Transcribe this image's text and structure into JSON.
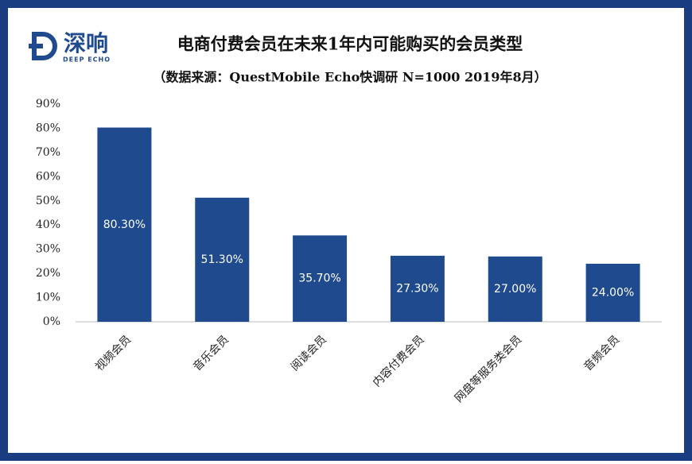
{
  "logo": {
    "name": "深响",
    "subtitle": "DEEP ECHO"
  },
  "chart_data": {
    "type": "bar",
    "title": "电商付费会员在未来1年内可能购买的会员类型",
    "subtitle": "（数据来源：QuestMobile Echo快调研 N=1000 2019年8月）",
    "categories": [
      "视频会员",
      "音乐会员",
      "阅读会员",
      "内容付费会员",
      "网盘等服务类会员",
      "音频会员"
    ],
    "values": [
      80.3,
      51.3,
      35.7,
      27.3,
      27.0,
      24.0
    ],
    "value_labels": [
      "80.30%",
      "51.30%",
      "35.70%",
      "27.30%",
      "27.00%",
      "24.00%"
    ],
    "color": "#1f4b8e",
    "ylim": [
      0,
      90
    ],
    "yticks": [
      {
        "value": 0,
        "label": "0%"
      },
      {
        "value": 10,
        "label": "10%"
      },
      {
        "value": 20,
        "label": "20%"
      },
      {
        "value": 30,
        "label": "30%"
      },
      {
        "value": 40,
        "label": "40%"
      },
      {
        "value": 50,
        "label": "50%"
      },
      {
        "value": 60,
        "label": "60%"
      },
      {
        "value": 70,
        "label": "70%"
      },
      {
        "value": 80,
        "label": "80%"
      },
      {
        "value": 90,
        "label": "90%"
      }
    ],
    "grid": false
  }
}
